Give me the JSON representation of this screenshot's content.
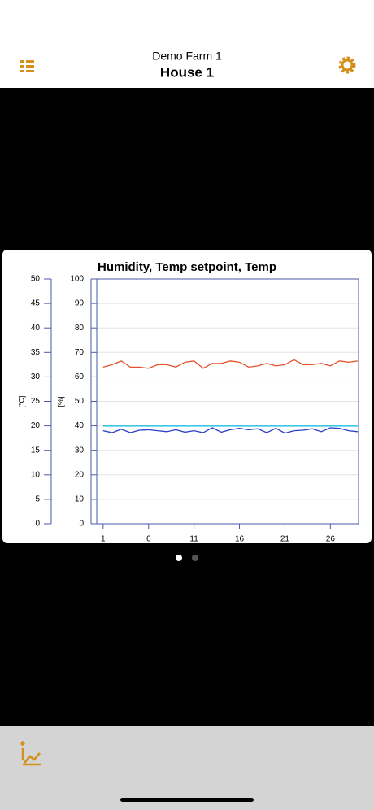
{
  "header": {
    "subtitle": "Demo Farm 1",
    "title": "House 1"
  },
  "chart_data": {
    "type": "line",
    "title": "Humidity, Temp setpoint, Temp",
    "x": [
      1,
      2,
      3,
      4,
      5,
      6,
      7,
      8,
      9,
      10,
      11,
      12,
      13,
      14,
      15,
      16,
      17,
      18,
      19,
      20,
      21,
      22,
      23,
      24,
      25,
      26,
      27,
      28,
      29
    ],
    "series": [
      {
        "color": "#e8502a",
        "axis": "y2",
        "values": [
          64,
          65,
          66.5,
          64,
          64,
          63.5,
          65,
          65,
          64,
          66,
          66.5,
          63.5,
          65.5,
          65.5,
          66.5,
          66,
          64,
          64.5,
          65.5,
          64.5,
          65,
          67,
          65,
          65,
          65.5,
          64.5,
          66.5,
          66,
          66.5
        ]
      },
      {
        "color": "#3ec6e8",
        "values": [
          20,
          20,
          20,
          20,
          20,
          20,
          20,
          20,
          20,
          20,
          20,
          20,
          20,
          20,
          20,
          20,
          20,
          20,
          20,
          20,
          20,
          20,
          20,
          20,
          20,
          20,
          20,
          20,
          20
        ]
      },
      {
        "color": "#2a3fc8",
        "values": [
          19,
          18.6,
          19.3,
          18.6,
          19.1,
          19.2,
          19,
          18.8,
          19.2,
          18.7,
          19,
          18.6,
          19.6,
          18.7,
          19.2,
          19.5,
          19.2,
          19.4,
          18.6,
          19.5,
          18.5,
          19,
          19.1,
          19.4,
          18.8,
          19.6,
          19.5,
          19,
          18.8
        ]
      }
    ],
    "xlim": [
      0.3,
      29.1
    ],
    "xticks": [
      1,
      6,
      11,
      16,
      21,
      26
    ],
    "ylabel": "[°C]",
    "ylim": [
      0,
      50
    ],
    "yticks": [
      0,
      5,
      10,
      15,
      20,
      25,
      30,
      35,
      40,
      45,
      50
    ],
    "y2label": "[%]",
    "y2lim": [
      0,
      100
    ],
    "y2ticks": [
      0,
      10,
      20,
      30,
      40,
      50,
      60,
      70,
      80,
      90,
      100
    ],
    "grid": true
  }
}
